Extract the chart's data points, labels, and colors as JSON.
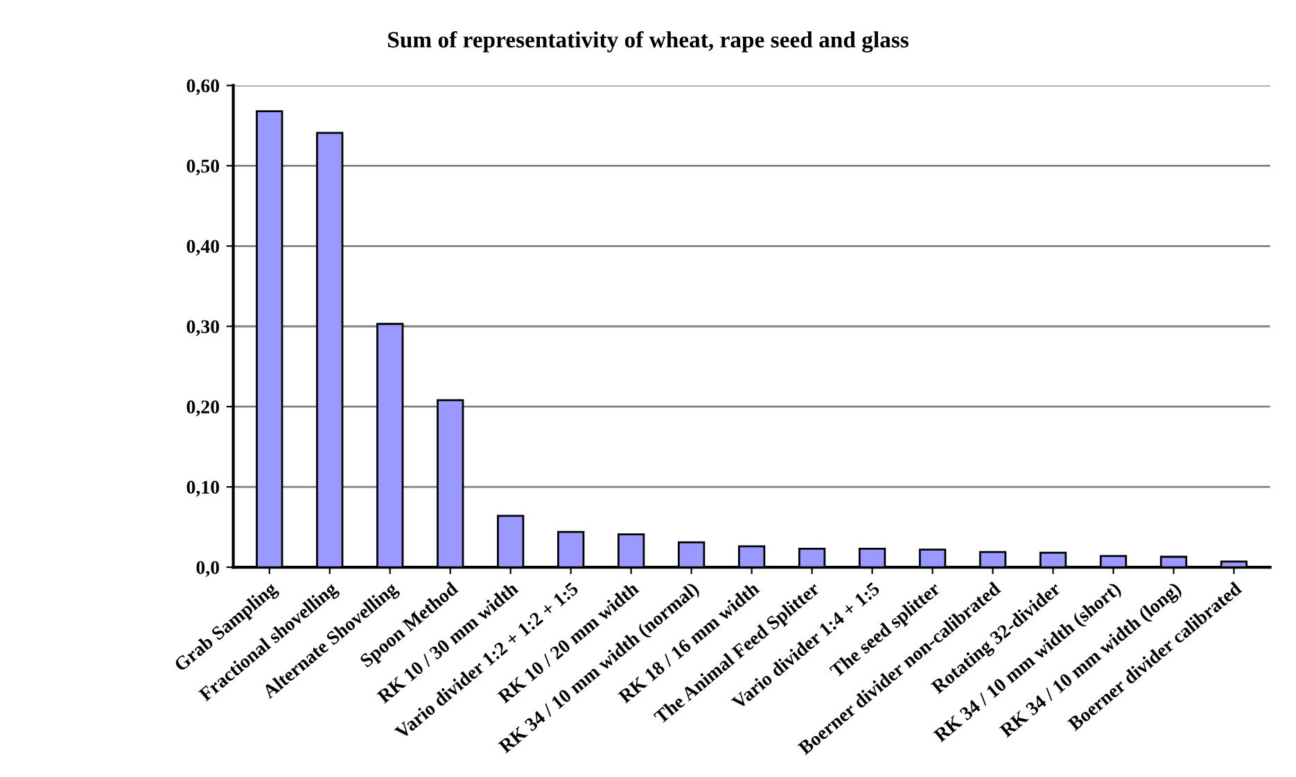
{
  "chart_data": {
    "type": "bar",
    "title": "Sum of representativity of wheat, rape seed and glass",
    "categories": [
      "Grab Sampling",
      "Fractional shovelling",
      "Alternate Shovelling",
      "Spoon Method",
      "RK 10 / 30 mm width",
      "Vario divider 1:2 + 1:2 + 1:5",
      "RK 10 / 20 mm width",
      "RK 34 / 10 mm width (normal)",
      "RK 18 / 16 mm width",
      "The Animal Feed Splitter",
      "Vario divider 1:4 + 1:5",
      "The seed splitter",
      "Boerner divider non-calibrated",
      "Rotating 32-divider",
      "RK 34 / 10 mm width (short)",
      "RK 34 / 10 mm width (long)",
      "Boerner divider calibrated"
    ],
    "values": [
      0.568,
      0.541,
      0.303,
      0.208,
      0.064,
      0.044,
      0.041,
      0.031,
      0.026,
      0.023,
      0.023,
      0.022,
      0.019,
      0.018,
      0.014,
      0.013,
      0.007
    ],
    "color": "#9999ff",
    "ylim": [
      0,
      0.6
    ],
    "yticks": [
      {
        "value": 0,
        "label": "0,0"
      },
      {
        "value": 0.1,
        "label": "0,10"
      },
      {
        "value": 0.2,
        "label": "0,20"
      },
      {
        "value": 0.3,
        "label": "0,30"
      },
      {
        "value": 0.4,
        "label": "0,40"
      },
      {
        "value": 0.5,
        "label": "0,50"
      },
      {
        "value": 0.6,
        "label": "0,60"
      }
    ],
    "grid": "y"
  }
}
